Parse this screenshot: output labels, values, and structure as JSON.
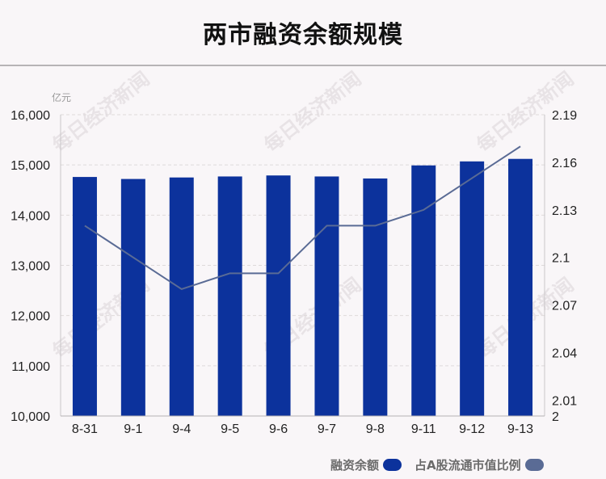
{
  "title": "两市融资余额规模",
  "watermark": "每日经济新闻",
  "colors": {
    "bar": "#0c329c",
    "line": "#5a6b95",
    "grid": "#dedada"
  },
  "chart_data": {
    "type": "bar",
    "title": "两市融资余额规模",
    "categories": [
      "8-31",
      "9-1",
      "9-4",
      "9-5",
      "9-6",
      "9-7",
      "9-8",
      "9-11",
      "9-12",
      "9-13"
    ],
    "series": [
      {
        "name": "融资余额",
        "type": "bar",
        "axis": "left",
        "values": [
          14760,
          14720,
          14750,
          14770,
          14790,
          14770,
          14730,
          14990,
          15070,
          15120
        ]
      },
      {
        "name": "占A股流通市值比例",
        "type": "line",
        "axis": "right",
        "values": [
          2.12,
          2.1,
          2.08,
          2.09,
          2.09,
          2.12,
          2.12,
          2.13,
          2.15,
          2.17
        ]
      }
    ],
    "y_left": {
      "unit": "亿元",
      "ylim": [
        10000,
        16000
      ],
      "ticks": [
        "10,000",
        "11,000",
        "12,000",
        "13,000",
        "14,000",
        "15,000",
        "16,000"
      ]
    },
    "y_right": {
      "ylim": [
        2.0,
        2.19
      ],
      "ticks": [
        "2",
        "2.01",
        "2.04",
        "2.07",
        "2.1",
        "2.13",
        "2.16",
        "2.19"
      ]
    },
    "grid": true,
    "legend_position": "bottom-right"
  }
}
